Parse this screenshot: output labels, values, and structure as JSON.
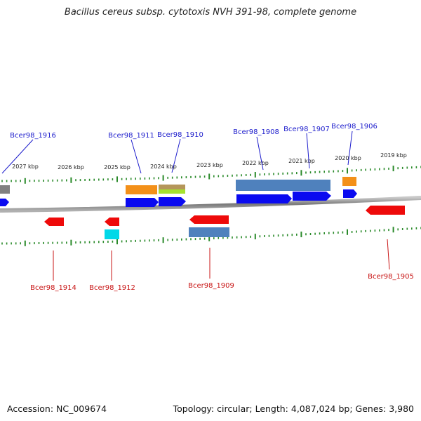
{
  "title": "Bacillus cereus subsp. cytotoxis NVH 391-98, complete genome",
  "footer": {
    "accession": "Accession: NC_009674",
    "topology": "Topology: circular; Length: 4,087,024 bp; Genes: 3,980"
  },
  "colors": {
    "label_top": "#1c1ccc",
    "label_bottom": "#c81414",
    "tick": "#2a8a2a",
    "backbone": "#8a8a8a"
  },
  "ruler_labels": [
    "2027 kbp",
    "2026 kbp",
    "2025 kbp",
    "2024 kbp",
    "2023 kbp",
    "2022 kbp",
    "2021 kbp",
    "2020 kbp",
    "2019 kbp"
  ],
  "genes_top": [
    {
      "name": "Bcer98_1916"
    },
    {
      "name": "Bcer98_1911"
    },
    {
      "name": "Bcer98_1910"
    },
    {
      "name": "Bcer98_1908"
    },
    {
      "name": "Bcer98_1907"
    },
    {
      "name": "Bcer98_1906"
    }
  ],
  "genes_bottom": [
    {
      "name": "Bcer98_1914"
    },
    {
      "name": "Bcer98_1912"
    },
    {
      "name": "Bcer98_1909"
    },
    {
      "name": "Bcer98_1905"
    }
  ]
}
